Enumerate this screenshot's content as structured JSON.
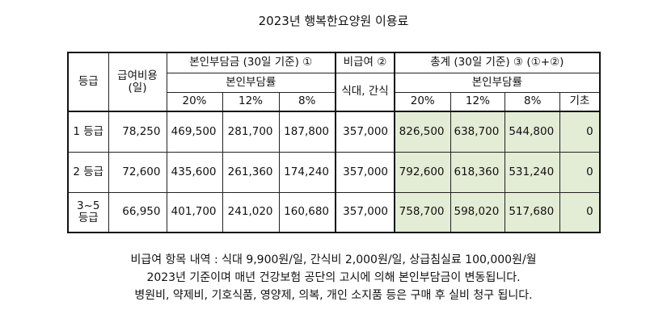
{
  "title": "2023년 행복한요양원 이용료",
  "header": {
    "grade": "등급",
    "cost_line1": "급여비용",
    "cost_line2": "(일)",
    "self_pay_group": "본인부담금 (30일 기준) ①",
    "non_covered_group": "비급여 ②",
    "total_group": "총계 (30일 기준) ③ (①+②)",
    "self_pay_rate": "본인부담률",
    "non_covered_item": "식대, 간식",
    "total_rate": "본인부담률",
    "rates_self": [
      "20%",
      "12%",
      "8%"
    ],
    "rates_total": [
      "20%",
      "12%",
      "8%",
      "기초"
    ]
  },
  "rows": [
    {
      "grade": "1 등급",
      "grade_line2": "",
      "cost": "78,250",
      "self_pay": [
        "469,500",
        "281,700",
        "187,800"
      ],
      "non_covered": "357,000",
      "total": [
        "826,500",
        "638,700",
        "544,800",
        "0"
      ]
    },
    {
      "grade": "2 등급",
      "grade_line2": "",
      "cost": "72,600",
      "self_pay": [
        "435,600",
        "261,360",
        "174,240"
      ],
      "non_covered": "357,000",
      "total": [
        "792,600",
        "618,360",
        "531,240",
        "0"
      ]
    },
    {
      "grade": "3~5",
      "grade_line2": "등급",
      "cost": "66,950",
      "self_pay": [
        "401,700",
        "241,020",
        "160,680"
      ],
      "non_covered": "357,000",
      "total": [
        "758,700",
        "598,020",
        "517,680",
        "0"
      ]
    }
  ],
  "notes": [
    "비급여 항목 내역 : 식대 9,900원/일,  간식비 2,000원/일,  상급침실료 100,000원/월",
    "2023년 기준이며 매년 건강보험 공단의 고시에 의해 본인부담금이 변동됩니다.",
    "병원비, 약제비, 기호식품, 영양제, 의복, 개인 소지품 등은 구매 후 실비 청구 됩니다."
  ],
  "colors": {
    "highlight": "#e3ecd5",
    "border": "#222222"
  }
}
